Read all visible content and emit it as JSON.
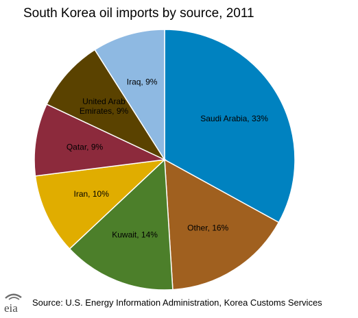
{
  "chart_data": {
    "type": "pie",
    "title": "South Korea oil imports by source, 2011",
    "slices": [
      {
        "label": "Saudi Arabia, 33%",
        "value": 33,
        "color": "#0082c0"
      },
      {
        "label": "Other, 16%",
        "value": 16,
        "color": "#a0601f"
      },
      {
        "label": "Kuwait, 14%",
        "value": 14,
        "color": "#4c7f2a"
      },
      {
        "label": "Iran, 10%",
        "value": 10,
        "color": "#e0ad00"
      },
      {
        "label": "Qatar, 9%",
        "value": 9,
        "color": "#8c2a3c"
      },
      {
        "label": "United Arab Emirates, 9%",
        "label_lines": [
          "United Arab",
          "Emirates, 9%"
        ],
        "value": 9,
        "color": "#5a4200"
      },
      {
        "label": "Iraq, 9%",
        "value": 9,
        "color": "#8eb9e2"
      }
    ],
    "start_angle": "12 o'clock",
    "direction": "clockwise"
  },
  "footer": {
    "logo_text": "eia",
    "source": "Source: U.S. Energy Information Administration, Korea Customs Services"
  }
}
